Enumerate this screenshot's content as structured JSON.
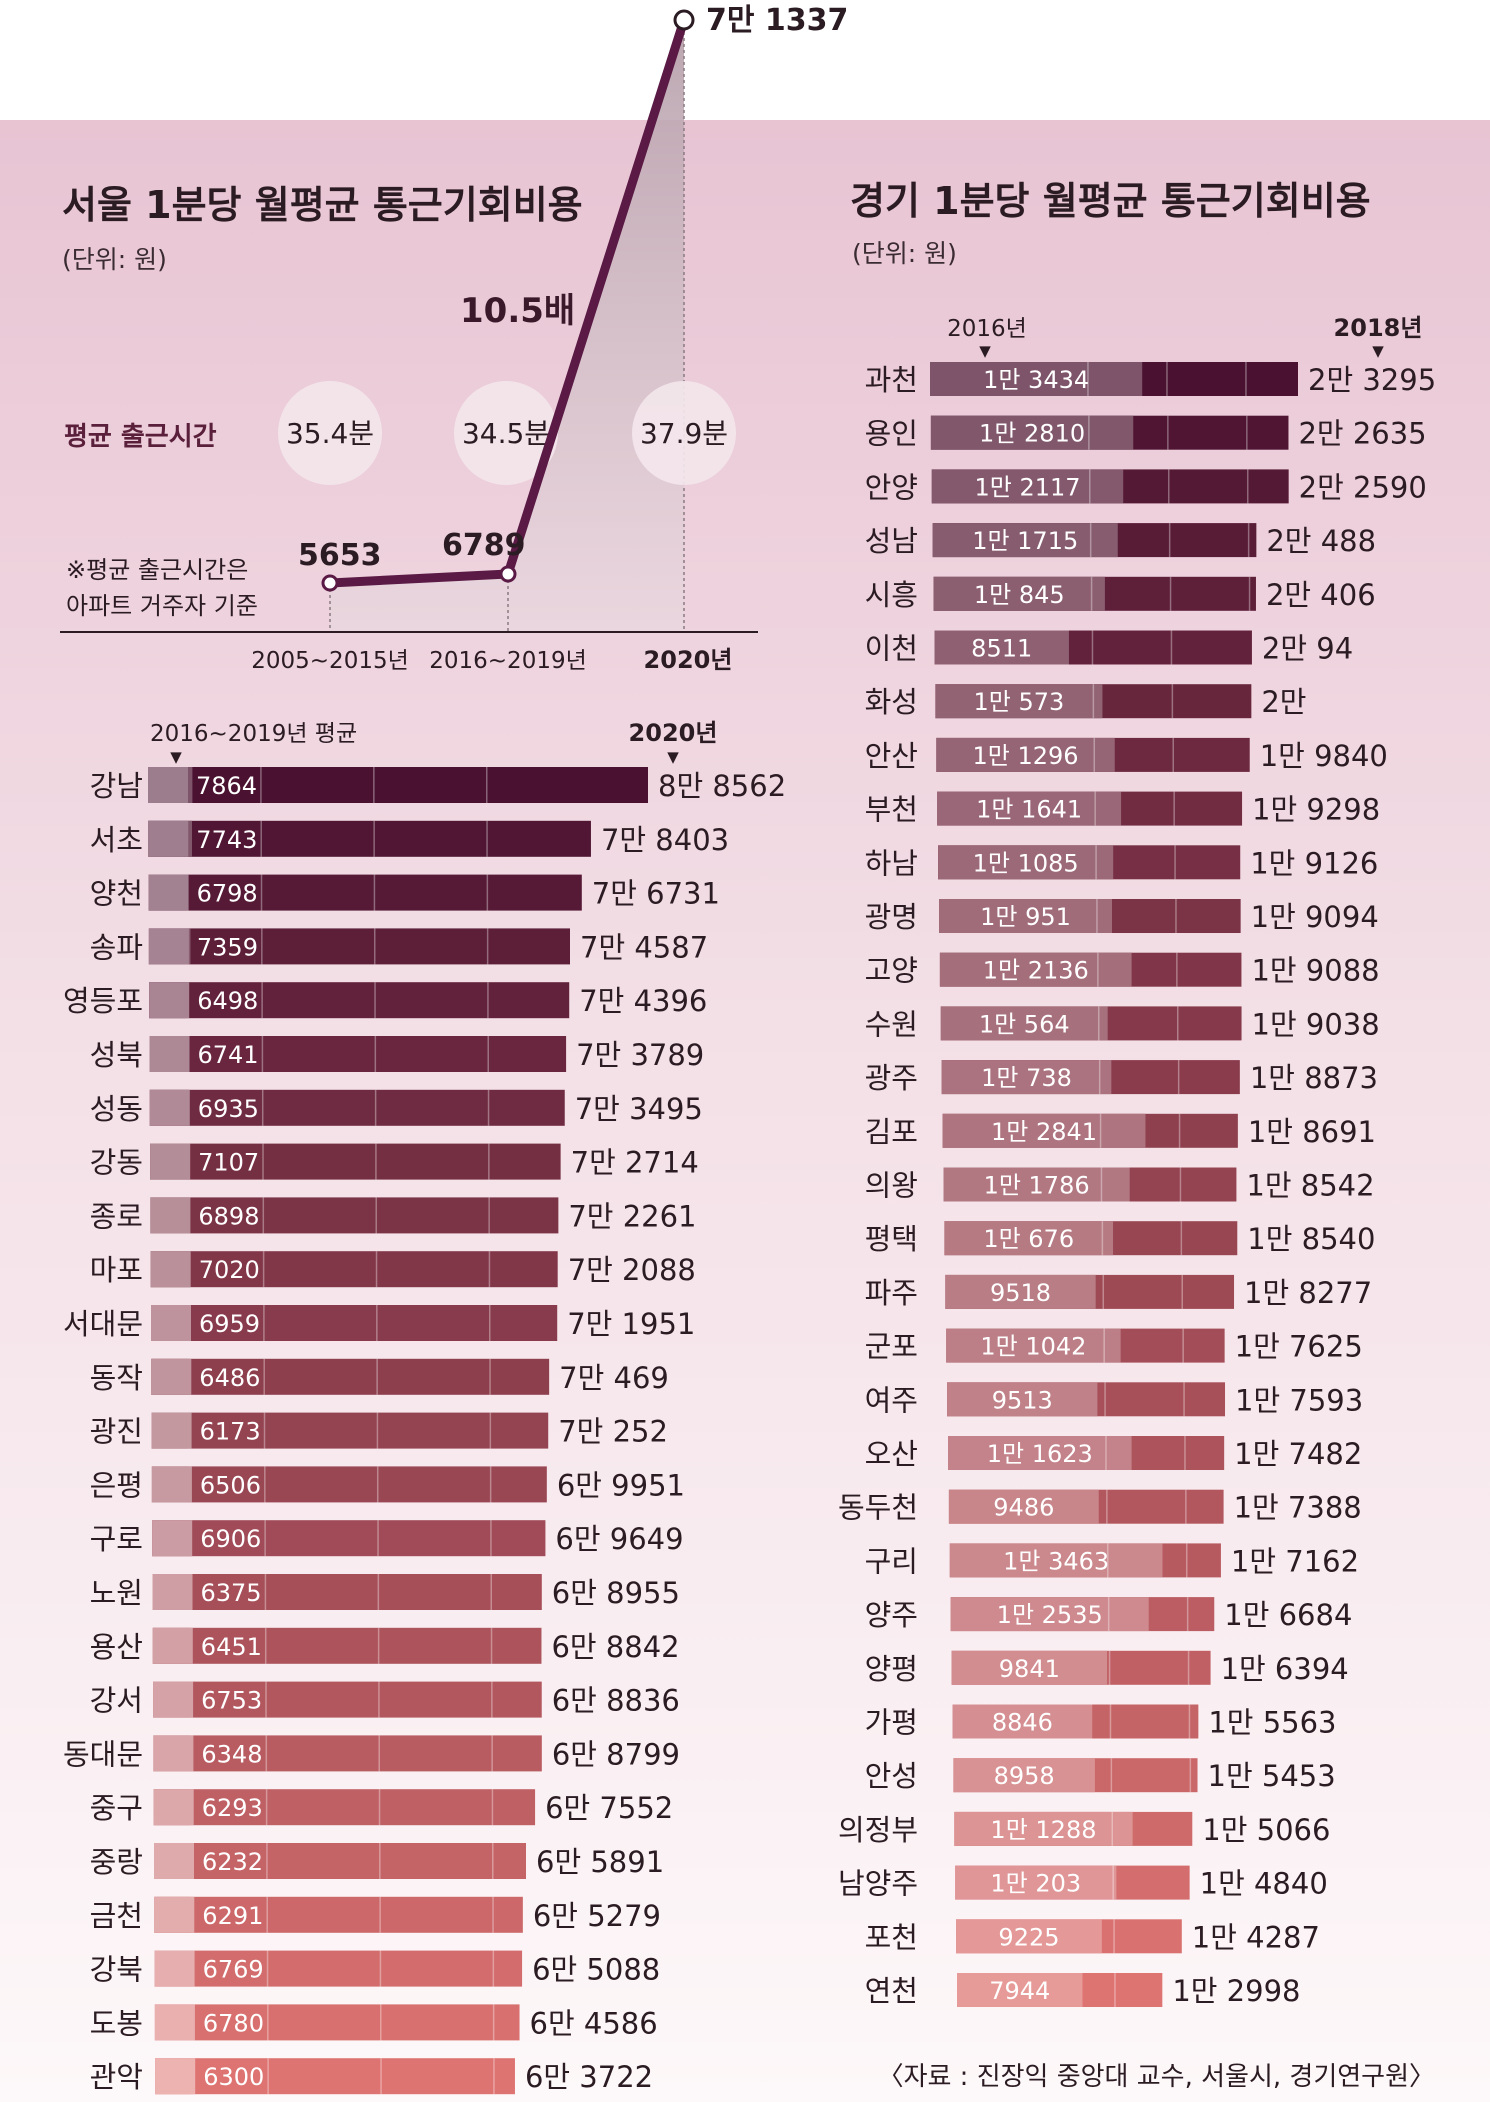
{
  "chart_data": [
    {
      "type": "line",
      "title": "서울 1분당 월평균 통근기회비용",
      "unit": "(단위: 원)",
      "categories": [
        "2005~2015년",
        "2016~2019년",
        "2020년"
      ],
      "values": [
        5653,
        6789,
        71337
      ],
      "value_labels": [
        "5653",
        "6789",
        "7만 1337"
      ],
      "commute_label": "평균 출근시간",
      "commute_times": [
        "35.4분",
        "34.5분",
        "37.9분"
      ],
      "multiplier": "10.5배",
      "note": [
        "※평균 출근시간은",
        "아파트 거주자 기준"
      ]
    },
    {
      "type": "bar",
      "series_labels": {
        "prev": "2016~2019년 평균",
        "curr": "2020년"
      },
      "colors": {
        "dark": "#4a1230",
        "light": "#de7472"
      },
      "max_value": 88562,
      "rows": [
        {
          "name": "강남",
          "prev": 7864,
          "prev_label": "7864",
          "curr": 88562,
          "curr_label": "8만 8562"
        },
        {
          "name": "서초",
          "prev": 7743,
          "prev_label": "7743",
          "curr": 78403,
          "curr_label": "7만 8403"
        },
        {
          "name": "양천",
          "prev": 6798,
          "prev_label": "6798",
          "curr": 76731,
          "curr_label": "7만 6731"
        },
        {
          "name": "송파",
          "prev": 7359,
          "prev_label": "7359",
          "curr": 74587,
          "curr_label": "7만 4587"
        },
        {
          "name": "영등포",
          "prev": 6498,
          "prev_label": "6498",
          "curr": 74396,
          "curr_label": "7만 4396"
        },
        {
          "name": "성북",
          "prev": 6741,
          "prev_label": "6741",
          "curr": 73789,
          "curr_label": "7만 3789"
        },
        {
          "name": "성동",
          "prev": 6935,
          "prev_label": "6935",
          "curr": 73495,
          "curr_label": "7만 3495"
        },
        {
          "name": "강동",
          "prev": 7107,
          "prev_label": "7107",
          "curr": 72714,
          "curr_label": "7만 2714"
        },
        {
          "name": "종로",
          "prev": 6898,
          "prev_label": "6898",
          "curr": 72261,
          "curr_label": "7만 2261"
        },
        {
          "name": "마포",
          "prev": 7020,
          "prev_label": "7020",
          "curr": 72088,
          "curr_label": "7만 2088"
        },
        {
          "name": "서대문",
          "prev": 6959,
          "prev_label": "6959",
          "curr": 71951,
          "curr_label": "7만 1951"
        },
        {
          "name": "동작",
          "prev": 6486,
          "prev_label": "6486",
          "curr": 70469,
          "curr_label": "7만 469"
        },
        {
          "name": "광진",
          "prev": 6173,
          "prev_label": "6173",
          "curr": 70252,
          "curr_label": "7만 252"
        },
        {
          "name": "은평",
          "prev": 6506,
          "prev_label": "6506",
          "curr": 69951,
          "curr_label": "6만 9951"
        },
        {
          "name": "구로",
          "prev": 6906,
          "prev_label": "6906",
          "curr": 69649,
          "curr_label": "6만 9649"
        },
        {
          "name": "노원",
          "prev": 6375,
          "prev_label": "6375",
          "curr": 68955,
          "curr_label": "6만 8955"
        },
        {
          "name": "용산",
          "prev": 6451,
          "prev_label": "6451",
          "curr": 68842,
          "curr_label": "6만 8842"
        },
        {
          "name": "강서",
          "prev": 6753,
          "prev_label": "6753",
          "curr": 68836,
          "curr_label": "6만 8836"
        },
        {
          "name": "동대문",
          "prev": 6348,
          "prev_label": "6348",
          "curr": 68799,
          "curr_label": "6만 8799"
        },
        {
          "name": "중구",
          "prev": 6293,
          "prev_label": "6293",
          "curr": 67552,
          "curr_label": "6만 7552"
        },
        {
          "name": "중랑",
          "prev": 6232,
          "prev_label": "6232",
          "curr": 65891,
          "curr_label": "6만 5891"
        },
        {
          "name": "금천",
          "prev": 6291,
          "prev_label": "6291",
          "curr": 65279,
          "curr_label": "6만 5279"
        },
        {
          "name": "강북",
          "prev": 6769,
          "prev_label": "6769",
          "curr": 65088,
          "curr_label": "6만 5088"
        },
        {
          "name": "도봉",
          "prev": 6780,
          "prev_label": "6780",
          "curr": 64586,
          "curr_label": "6만 4586"
        },
        {
          "name": "관악",
          "prev": 6300,
          "prev_label": "6300",
          "curr": 63722,
          "curr_label": "6만 3722"
        }
      ]
    },
    {
      "type": "bar",
      "title": "경기 1분당 월평균 통근기회비용",
      "unit": "(단위: 원)",
      "series_labels": {
        "prev": "2016년",
        "curr": "2018년"
      },
      "colors": {
        "dark": "#4a1230",
        "light": "#de7472"
      },
      "max_value": 23295,
      "rows": [
        {
          "name": "과천",
          "prev": 13434,
          "prev_label": "1만 3434",
          "curr": 23295,
          "curr_label": "2만 3295"
        },
        {
          "name": "용인",
          "prev": 12810,
          "prev_label": "1만 2810",
          "curr": 22635,
          "curr_label": "2만 2635"
        },
        {
          "name": "안양",
          "prev": 12117,
          "prev_label": "1만 2117",
          "curr": 22590,
          "curr_label": "2만 2590"
        },
        {
          "name": "성남",
          "prev": 11715,
          "prev_label": "1만 1715",
          "curr": 20488,
          "curr_label": "2만 488"
        },
        {
          "name": "시흥",
          "prev": 10845,
          "prev_label": "1만 845",
          "curr": 20406,
          "curr_label": "2만 406"
        },
        {
          "name": "이천",
          "prev": 8511,
          "prev_label": "8511",
          "curr": 20094,
          "curr_label": "2만 94"
        },
        {
          "name": "화성",
          "prev": 10573,
          "prev_label": "1만 573",
          "curr": 20000,
          "curr_label": "2만"
        },
        {
          "name": "안산",
          "prev": 11296,
          "prev_label": "1만 1296",
          "curr": 19840,
          "curr_label": "1만 9840"
        },
        {
          "name": "부천",
          "prev": 11641,
          "prev_label": "1만 1641",
          "curr": 19298,
          "curr_label": "1만 9298"
        },
        {
          "name": "하남",
          "prev": 11085,
          "prev_label": "1만 1085",
          "curr": 19126,
          "curr_label": "1만 9126"
        },
        {
          "name": "광명",
          "prev": 10951,
          "prev_label": "1만 951",
          "curr": 19094,
          "curr_label": "1만 9094"
        },
        {
          "name": "고양",
          "prev": 12136,
          "prev_label": "1만 2136",
          "curr": 19088,
          "curr_label": "1만 9088"
        },
        {
          "name": "수원",
          "prev": 10564,
          "prev_label": "1만 564",
          "curr": 19038,
          "curr_label": "1만 9038"
        },
        {
          "name": "광주",
          "prev": 10738,
          "prev_label": "1만 738",
          "curr": 18873,
          "curr_label": "1만 8873"
        },
        {
          "name": "김포",
          "prev": 12841,
          "prev_label": "1만 2841",
          "curr": 18691,
          "curr_label": "1만 8691"
        },
        {
          "name": "의왕",
          "prev": 11786,
          "prev_label": "1만 1786",
          "curr": 18542,
          "curr_label": "1만 8542"
        },
        {
          "name": "평택",
          "prev": 10676,
          "prev_label": "1만 676",
          "curr": 18540,
          "curr_label": "1만 8540"
        },
        {
          "name": "파주",
          "prev": 9518,
          "prev_label": "9518",
          "curr": 18277,
          "curr_label": "1만 8277"
        },
        {
          "name": "군포",
          "prev": 11042,
          "prev_label": "1만 1042",
          "curr": 17625,
          "curr_label": "1만 7625"
        },
        {
          "name": "여주",
          "prev": 9513,
          "prev_label": "9513",
          "curr": 17593,
          "curr_label": "1만 7593"
        },
        {
          "name": "오산",
          "prev": 11623,
          "prev_label": "1만 1623",
          "curr": 17482,
          "curr_label": "1만 7482"
        },
        {
          "name": "동두천",
          "prev": 9486,
          "prev_label": "9486",
          "curr": 17388,
          "curr_label": "1만 7388"
        },
        {
          "name": "구리",
          "prev": 13463,
          "prev_label": "1만 3463",
          "curr": 17162,
          "curr_label": "1만 7162"
        },
        {
          "name": "양주",
          "prev": 12535,
          "prev_label": "1만 2535",
          "curr": 16684,
          "curr_label": "1만 6684"
        },
        {
          "name": "양평",
          "prev": 9841,
          "prev_label": "9841",
          "curr": 16394,
          "curr_label": "1만 6394"
        },
        {
          "name": "가평",
          "prev": 8846,
          "prev_label": "8846",
          "curr": 15563,
          "curr_label": "1만 5563"
        },
        {
          "name": "안성",
          "prev": 8958,
          "prev_label": "8958",
          "curr": 15453,
          "curr_label": "1만 5453"
        },
        {
          "name": "의정부",
          "prev": 11288,
          "prev_label": "1만 1288",
          "curr": 15066,
          "curr_label": "1만 5066"
        },
        {
          "name": "남양주",
          "prev": 10203,
          "prev_label": "1만 203",
          "curr": 14840,
          "curr_label": "1만 4840"
        },
        {
          "name": "포천",
          "prev": 9225,
          "prev_label": "9225",
          "curr": 14287,
          "curr_label": "1만 4287"
        },
        {
          "name": "연천",
          "prev": 7944,
          "prev_label": "7944",
          "curr": 12998,
          "curr_label": "1만 2998"
        }
      ]
    }
  ],
  "source": "〈자료 : 진장익 중앙대 교수, 서울시, 경기연구원〉"
}
